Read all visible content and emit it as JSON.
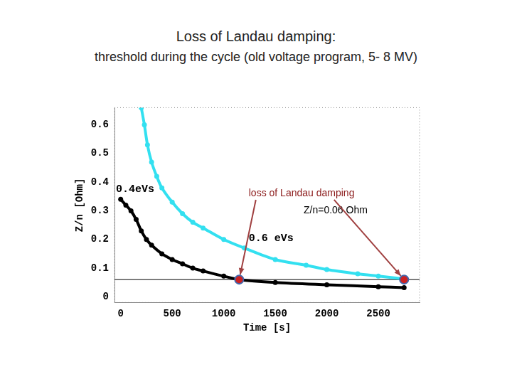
{
  "chart_data": {
    "type": "line",
    "title": "Loss of Landau damping:",
    "subtitle": "threshold during the cycle (old voltage program, 5- 8 MV)",
    "x_label": "Time [s]",
    "y_label": "Z/n [Ohm]",
    "xlim": [
      -60,
      2900
    ],
    "ylim": [
      -0.02,
      0.66
    ],
    "xticks": [
      0,
      500,
      1000,
      1500,
      2000,
      2500
    ],
    "yticks": [
      0,
      0.1,
      0.2,
      0.3,
      0.4,
      0.5,
      0.6
    ],
    "grid": false,
    "series": [
      {
        "name": "0.4eVs",
        "color": "#000000",
        "marker": "circle",
        "x": [
          0,
          50,
          100,
          150,
          200,
          250,
          300,
          400,
          500,
          600,
          700,
          800,
          1000,
          1150,
          1500,
          2000,
          2500,
          2750
        ],
        "values": [
          0.34,
          0.32,
          0.3,
          0.27,
          0.23,
          0.2,
          0.18,
          0.15,
          0.13,
          0.115,
          0.1,
          0.09,
          0.072,
          0.06,
          0.05,
          0.042,
          0.035,
          0.032
        ]
      },
      {
        "name": "0.6 eVs",
        "color": "#33e0f0",
        "marker": "circle",
        "x": [
          200,
          230,
          260,
          300,
          350,
          400,
          500,
          600,
          700,
          800,
          1000,
          1200,
          1500,
          1800,
          2000,
          2300,
          2500,
          2750
        ],
        "values": [
          0.66,
          0.6,
          0.53,
          0.47,
          0.42,
          0.38,
          0.33,
          0.29,
          0.26,
          0.24,
          0.2,
          0.17,
          0.13,
          0.11,
          0.095,
          0.08,
          0.072,
          0.062
        ]
      }
    ],
    "threshold": 0.06,
    "markers": {
      "x": [
        1150,
        2750
      ],
      "values": [
        0.06,
        0.06
      ],
      "color": "#cc2222"
    },
    "annotations": [
      "loss of Landau damping",
      "Z/n=0.06 Ohm"
    ]
  }
}
